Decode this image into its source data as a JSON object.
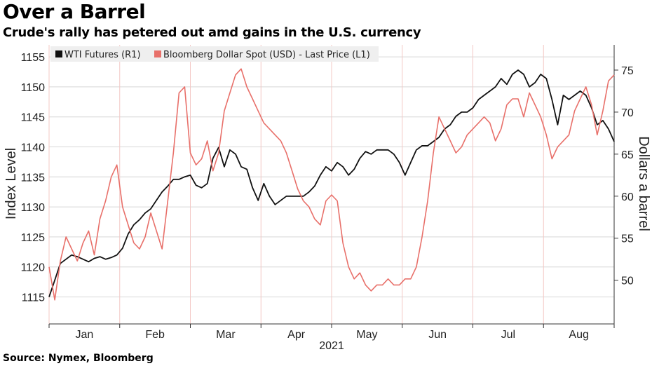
{
  "title": "Over a Barrel",
  "subtitle": "Crude's rally has petered out amd gains in the U.S. currency",
  "source": "Source: Nymex, Bloomberg",
  "chart_data": {
    "type": "line",
    "xlabel": "2021",
    "x_tick_labels": [
      "Jan",
      "Feb",
      "Mar",
      "Apr",
      "May",
      "Jun",
      "Jul",
      "Aug"
    ],
    "x_range": [
      0,
      1
    ],
    "left_axis": {
      "label": "Index Level",
      "ylim": [
        1110.5,
        1157
      ],
      "ticks": [
        1115,
        1120,
        1125,
        1130,
        1135,
        1140,
        1145,
        1150,
        1155
      ]
    },
    "right_axis": {
      "label": "Dollars a barrel",
      "ylim": [
        44.8,
        78
      ],
      "ticks": [
        50,
        55,
        60,
        65,
        70,
        75
      ]
    },
    "legend": {
      "placement": "top-left",
      "entries": [
        "WTI Futures (R1)",
        "Bloomberg Dollar Spot (USD) - Last Price (L1)"
      ]
    },
    "grid": true,
    "series": [
      {
        "name": "WTI Futures (R1)",
        "color": "#111111",
        "axis": "right",
        "x": [
          0.0,
          0.01,
          0.02,
          0.03,
          0.04,
          0.05,
          0.06,
          0.07,
          0.08,
          0.09,
          0.1,
          0.11,
          0.12,
          0.13,
          0.14,
          0.15,
          0.16,
          0.17,
          0.18,
          0.19,
          0.2,
          0.21,
          0.22,
          0.23,
          0.24,
          0.25,
          0.26,
          0.27,
          0.28,
          0.29,
          0.3,
          0.31,
          0.32,
          0.33,
          0.34,
          0.35,
          0.36,
          0.37,
          0.38,
          0.39,
          0.4,
          0.41,
          0.42,
          0.43,
          0.44,
          0.45,
          0.46,
          0.47,
          0.48,
          0.49,
          0.5,
          0.51,
          0.52,
          0.53,
          0.54,
          0.55,
          0.56,
          0.57,
          0.58,
          0.59,
          0.6,
          0.61,
          0.62,
          0.63,
          0.64,
          0.65,
          0.66,
          0.67,
          0.68,
          0.69,
          0.7,
          0.71,
          0.72,
          0.73,
          0.74,
          0.75,
          0.76,
          0.77,
          0.78,
          0.79,
          0.8,
          0.81,
          0.82,
          0.83,
          0.84,
          0.85,
          0.86,
          0.87,
          0.88,
          0.89,
          0.9,
          0.91,
          0.92,
          0.93,
          0.94,
          0.95,
          0.96,
          0.97,
          0.98,
          0.99,
          1.0
        ],
        "values": [
          48.0,
          50.0,
          52.0,
          52.5,
          53.0,
          52.8,
          52.5,
          52.2,
          52.6,
          52.8,
          52.5,
          52.7,
          53.0,
          53.8,
          55.5,
          56.6,
          57.2,
          58.0,
          58.5,
          59.5,
          60.5,
          61.2,
          62.0,
          62.0,
          62.3,
          62.5,
          61.3,
          61.0,
          61.5,
          64.5,
          65.8,
          63.5,
          65.5,
          65.0,
          63.5,
          63.2,
          61.0,
          59.5,
          61.5,
          60.0,
          59.0,
          59.5,
          60.0,
          60.0,
          60.0,
          60.0,
          60.5,
          61.2,
          62.5,
          63.5,
          63.0,
          64.0,
          63.5,
          62.5,
          63.2,
          64.5,
          65.3,
          65.0,
          65.5,
          65.5,
          65.5,
          65.0,
          64.0,
          62.5,
          64.0,
          65.5,
          66.0,
          66.0,
          66.5,
          67.0,
          68.0,
          68.5,
          69.5,
          70.0,
          70.0,
          70.5,
          71.5,
          72.0,
          72.5,
          73.0,
          74.0,
          73.3,
          74.5,
          75.0,
          74.5,
          73.0,
          73.5,
          74.5,
          74.0,
          71.5,
          68.5,
          72.0,
          71.5,
          72.0,
          72.5,
          72.0,
          70.5,
          68.5,
          69.0,
          68.0,
          66.5
        ]
      },
      {
        "name": "Bloomberg Dollar Spot (USD) - Last Price (L1)",
        "color": "#e8706a",
        "axis": "left",
        "x": [
          0.0,
          0.01,
          0.02,
          0.03,
          0.04,
          0.05,
          0.06,
          0.07,
          0.08,
          0.09,
          0.1,
          0.11,
          0.12,
          0.13,
          0.14,
          0.15,
          0.16,
          0.17,
          0.18,
          0.19,
          0.2,
          0.21,
          0.22,
          0.23,
          0.24,
          0.25,
          0.26,
          0.27,
          0.28,
          0.29,
          0.3,
          0.31,
          0.32,
          0.33,
          0.34,
          0.35,
          0.36,
          0.37,
          0.38,
          0.39,
          0.4,
          0.41,
          0.42,
          0.43,
          0.44,
          0.45,
          0.46,
          0.47,
          0.48,
          0.49,
          0.5,
          0.51,
          0.52,
          0.53,
          0.54,
          0.55,
          0.56,
          0.57,
          0.58,
          0.59,
          0.6,
          0.61,
          0.62,
          0.63,
          0.64,
          0.65,
          0.66,
          0.67,
          0.68,
          0.69,
          0.7,
          0.71,
          0.72,
          0.73,
          0.74,
          0.75,
          0.76,
          0.77,
          0.78,
          0.79,
          0.8,
          0.81,
          0.82,
          0.83,
          0.84,
          0.85,
          0.86,
          0.87,
          0.88,
          0.89,
          0.9,
          0.91,
          0.92,
          0.93,
          0.94,
          0.95,
          0.96,
          0.97,
          0.98,
          0.99,
          1.0
        ],
        "values": [
          1120.0,
          1114.5,
          1121.0,
          1125.0,
          1123.0,
          1121.0,
          1124.0,
          1126.0,
          1122.0,
          1128.0,
          1131.0,
          1135.0,
          1137.0,
          1130.0,
          1127.0,
          1124.0,
          1123.0,
          1125.0,
          1129.0,
          1126.0,
          1123.0,
          1131.0,
          1139.0,
          1149.0,
          1150.0,
          1139.0,
          1137.0,
          1138.0,
          1141.0,
          1136.0,
          1139.0,
          1146.0,
          1149.0,
          1152.0,
          1153.0,
          1150.0,
          1148.0,
          1146.0,
          1144.0,
          1143.0,
          1142.0,
          1141.0,
          1139.0,
          1136.0,
          1133.0,
          1131.0,
          1130.0,
          1128.0,
          1127.0,
          1131.0,
          1132.0,
          1131.0,
          1124.0,
          1120.0,
          1118.0,
          1119.0,
          1117.0,
          1116.0,
          1117.0,
          1117.0,
          1118.0,
          1117.0,
          1117.0,
          1118.0,
          1118.0,
          1120.0,
          1125.0,
          1131.0,
          1139.0,
          1145.0,
          1143.0,
          1141.0,
          1139.0,
          1140.0,
          1142.0,
          1143.0,
          1144.0,
          1145.0,
          1144.0,
          1141.0,
          1143.0,
          1147.0,
          1148.0,
          1148.0,
          1145.0,
          1149.0,
          1147.0,
          1145.0,
          1142.0,
          1138.0,
          1140.0,
          1141.0,
          1142.0,
          1146.0,
          1148.0,
          1150.0,
          1147.0,
          1142.0,
          1146.0,
          1151.0,
          1152.0
        ]
      }
    ]
  }
}
